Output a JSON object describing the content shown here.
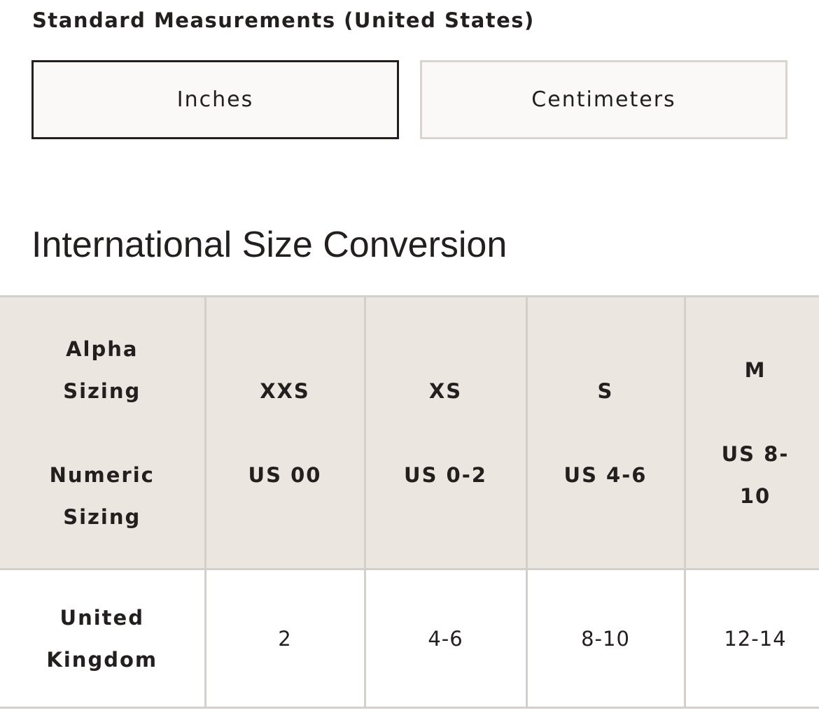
{
  "section_title": "Standard Measurements (United States)",
  "units": {
    "inches": "Inches",
    "centimeters": "Centimeters",
    "selected": "Inches"
  },
  "conversion_heading": "International Size Conversion",
  "colors": {
    "header_bg": "#ece6e0",
    "border": "#d3cfcb",
    "text": "#231f1e"
  },
  "table": {
    "header": {
      "label": {
        "alpha": "Alpha Sizing",
        "numeric": "Numeric Sizing"
      },
      "columns": [
        {
          "alpha": "XXS",
          "numeric": "US 00"
        },
        {
          "alpha": "XS",
          "numeric": "US 0-2"
        },
        {
          "alpha": "S",
          "numeric": "US 4-6"
        },
        {
          "alpha": "M",
          "numeric": "US 8-10"
        }
      ]
    },
    "rows": [
      {
        "label": "United Kingdom",
        "values": [
          "2",
          "4-6",
          "8-10",
          "12-14"
        ]
      }
    ]
  }
}
